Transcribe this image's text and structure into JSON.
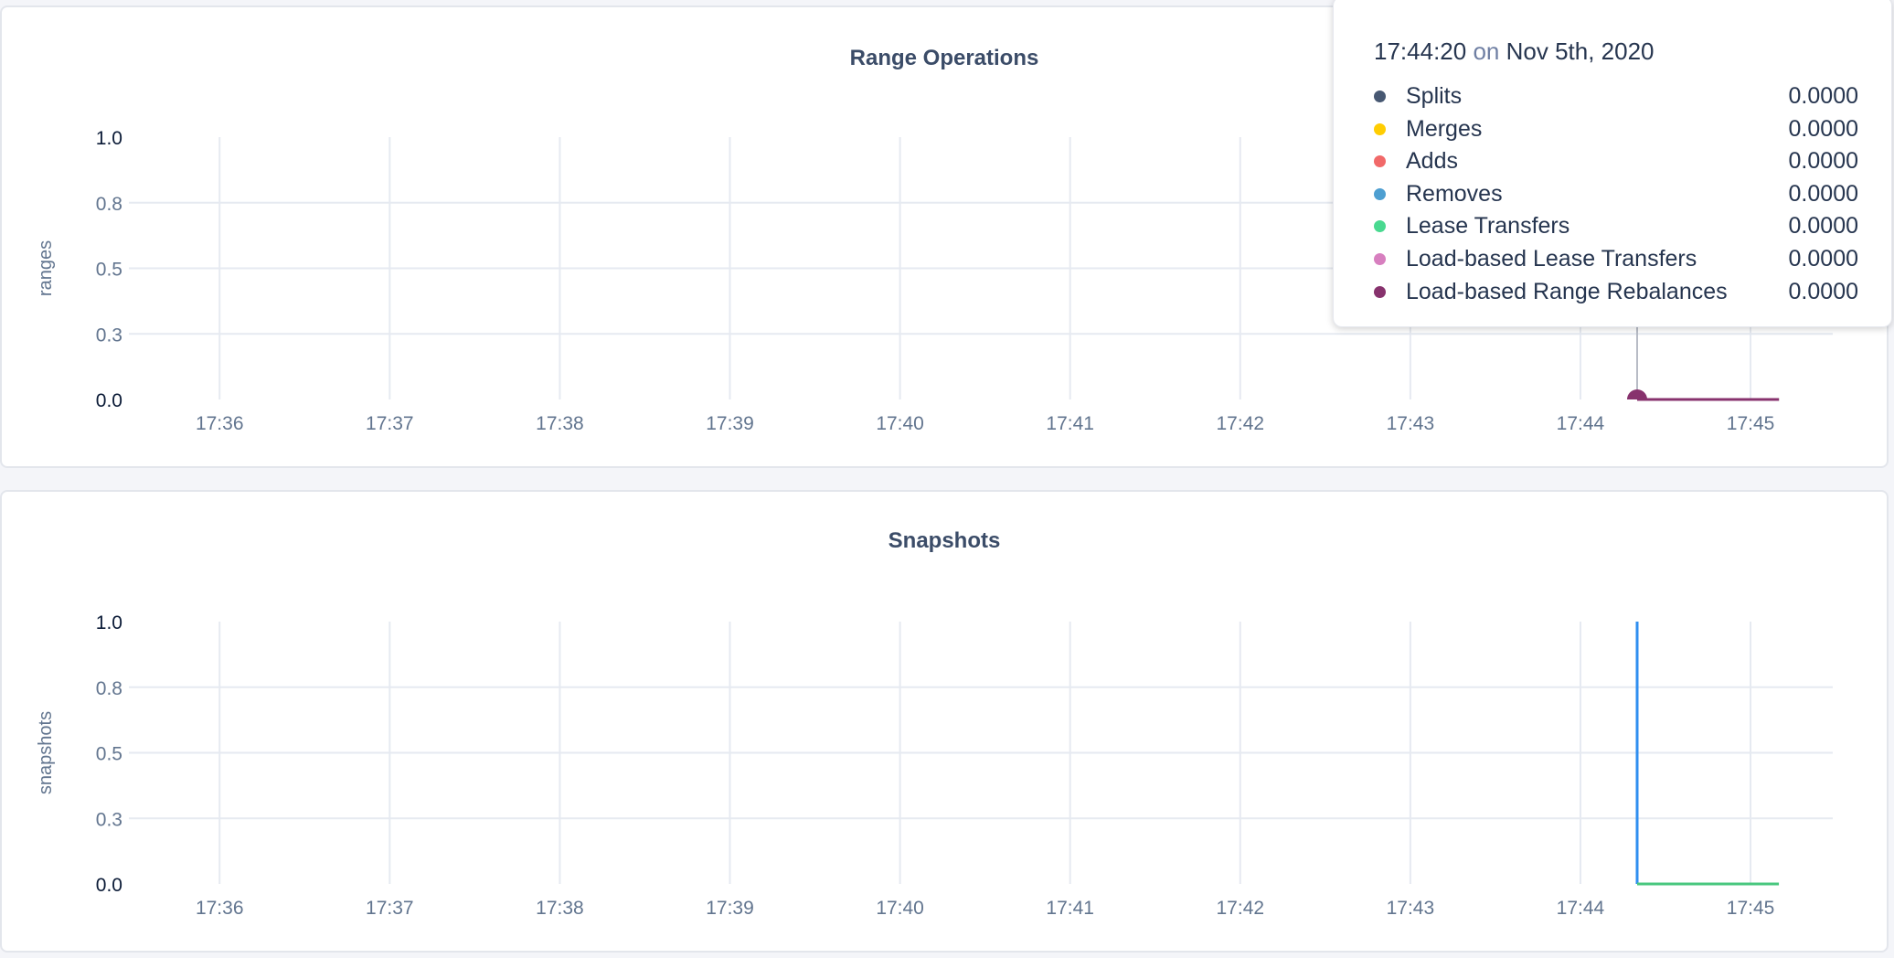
{
  "chart_data": [
    {
      "type": "line",
      "title": "Range Operations",
      "ylabel": "ranges",
      "xlabel": "",
      "ylim": [
        0,
        1
      ],
      "y_ticks": [
        0,
        0.25,
        0.5,
        0.75,
        1
      ],
      "y_tick_labels": [
        "0.0",
        "0.3",
        "0.5",
        "0.8",
        "1.0"
      ],
      "xlim": [
        "17:35:28",
        "17:45:29"
      ],
      "x_ticks": [
        "17:36",
        "17:37",
        "17:38",
        "17:39",
        "17:40",
        "17:41",
        "17:42",
        "17:43",
        "17:44",
        "17:45"
      ],
      "grid": true,
      "hover_time": "17:44:20",
      "series": [
        {
          "name": "Splits",
          "color": "#475872",
          "points": [
            [
              "17:44:20",
              0
            ],
            [
              "17:45:10",
              0
            ]
          ]
        },
        {
          "name": "Merges",
          "color": "#ffcd02",
          "points": [
            [
              "17:44:20",
              0
            ],
            [
              "17:45:10",
              0
            ]
          ]
        },
        {
          "name": "Adds",
          "color": "#f16969",
          "points": [
            [
              "17:44:20",
              0
            ],
            [
              "17:45:10",
              0
            ]
          ]
        },
        {
          "name": "Removes",
          "color": "#4e9fd1",
          "points": [
            [
              "17:44:20",
              0
            ],
            [
              "17:45:10",
              0
            ]
          ]
        },
        {
          "name": "Lease Transfers",
          "color": "#49d990",
          "points": [
            [
              "17:44:20",
              0
            ],
            [
              "17:45:10",
              0
            ]
          ]
        },
        {
          "name": "Load-based Lease Transfers",
          "color": "#d77fbf",
          "points": [
            [
              "17:44:20",
              0
            ],
            [
              "17:45:10",
              0
            ]
          ]
        },
        {
          "name": "Load-based Range Rebalances",
          "color": "#87326d",
          "points": [
            [
              "17:44:20",
              0
            ],
            [
              "17:45:10",
              0
            ]
          ]
        }
      ],
      "tooltip": {
        "time": "17:44:20",
        "on": "on",
        "date": "Nov 5th, 2020",
        "rows": [
          {
            "label": "Splits",
            "value": "0.0000",
            "color": "#475872"
          },
          {
            "label": "Merges",
            "value": "0.0000",
            "color": "#ffcd02"
          },
          {
            "label": "Adds",
            "value": "0.0000",
            "color": "#f16969"
          },
          {
            "label": "Removes",
            "value": "0.0000",
            "color": "#4e9fd1"
          },
          {
            "label": "Lease Transfers",
            "value": "0.0000",
            "color": "#49d990"
          },
          {
            "label": "Load-based Lease Transfers",
            "value": "0.0000",
            "color": "#d77fbf"
          },
          {
            "label": "Load-based Range Rebalances",
            "value": "0.0000",
            "color": "#87326d"
          }
        ]
      }
    },
    {
      "type": "line",
      "title": "Snapshots",
      "ylabel": "snapshots",
      "xlabel": "",
      "ylim": [
        0,
        1
      ],
      "y_ticks": [
        0,
        0.25,
        0.5,
        0.75,
        1
      ],
      "y_tick_labels": [
        "0.0",
        "0.3",
        "0.5",
        "0.8",
        "1.0"
      ],
      "xlim": [
        "17:35:28",
        "17:45:29"
      ],
      "x_ticks": [
        "17:36",
        "17:37",
        "17:38",
        "17:39",
        "17:40",
        "17:41",
        "17:42",
        "17:43",
        "17:44",
        "17:45"
      ],
      "grid": true,
      "series": [
        {
          "color": "#2f8ff0",
          "points": [
            [
              "17:44:20",
              1
            ],
            [
              "17:44:20",
              0
            ]
          ]
        },
        {
          "color": "#49c77f",
          "points": [
            [
              "17:44:20",
              0
            ],
            [
              "17:45:10",
              0
            ]
          ]
        }
      ]
    }
  ]
}
